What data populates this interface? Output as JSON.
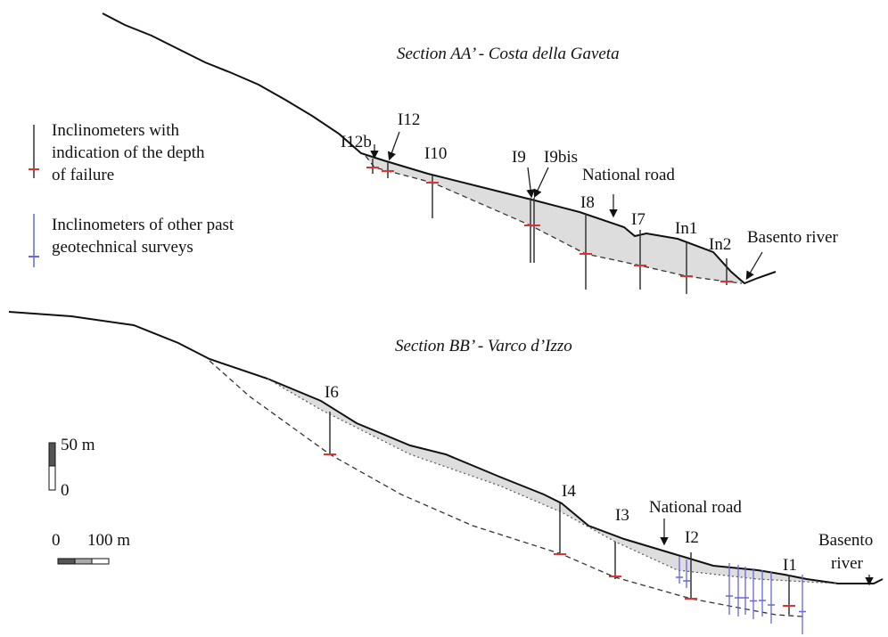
{
  "legend": [
    {
      "lines": [
        "Inclinometers with",
        "indication of the depth",
        "of failure"
      ]
    },
    {
      "lines": [
        "Inclinometers of other past",
        "geotechnical surveys"
      ]
    }
  ],
  "sections": [
    {
      "title": "Section AA’ - Costa della Gaveta",
      "inclinometers": [
        "I12b",
        "I12",
        "I10",
        "I9",
        "I9bis",
        "I8",
        "I7",
        "In1",
        "In2"
      ],
      "road": "National road",
      "river": [
        "Basento river"
      ]
    },
    {
      "title": "Section BB’ - Varco d’Izzo",
      "inclinometers": [
        "I6",
        "I4",
        "I3",
        "I2",
        "I1"
      ],
      "road": "National road",
      "river": [
        "Basento",
        "river"
      ]
    }
  ],
  "scale": {
    "vertical_top": "50 m",
    "vertical_bottom": "0",
    "horizontal_left": "0",
    "horizontal_right": "100 m"
  }
}
